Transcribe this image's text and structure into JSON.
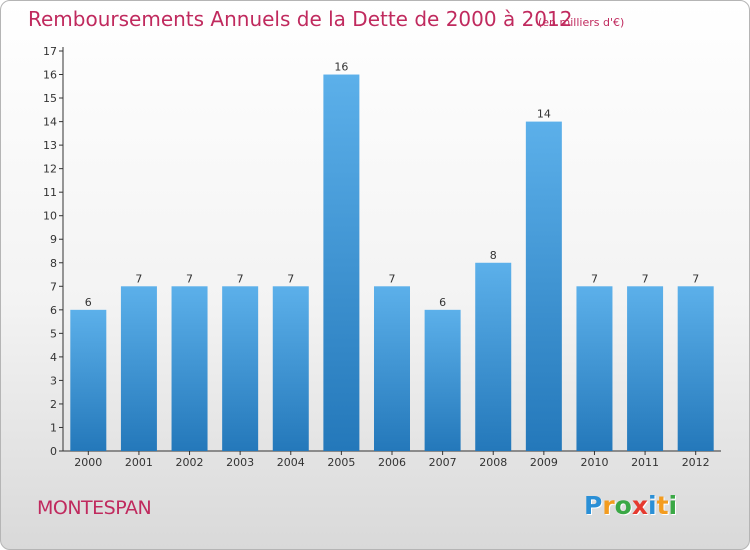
{
  "header": {
    "title": "Remboursements Annuels de la Dette de 2000 à 2012",
    "subtitle": "(en milliers d'€)"
  },
  "footer": {
    "town": "MONTESPAN",
    "logo": {
      "letters": [
        "P",
        "r",
        "o",
        "x",
        "i",
        "t",
        "i"
      ],
      "colors": [
        "#2a8fd6",
        "#f39c1f",
        "#3aa845",
        "#e53a2f",
        "#2a8fd6",
        "#f39c1f",
        "#3aa845"
      ]
    }
  },
  "colors": {
    "bar_top": "#5cb0ea",
    "bar_bottom": "#2478ba",
    "text": "#c02a5e",
    "axis": "#333333"
  },
  "chart_data": {
    "type": "bar",
    "title": "Remboursements Annuels de la Dette de 2000 à 2012",
    "subtitle": "(en milliers d'€)",
    "categories": [
      "2000",
      "2001",
      "2002",
      "2003",
      "2004",
      "2005",
      "2006",
      "2007",
      "2008",
      "2009",
      "2010",
      "2011",
      "2012"
    ],
    "values": [
      6,
      7,
      7,
      7,
      7,
      16,
      7,
      6,
      8,
      14,
      7,
      7,
      7
    ],
    "data_labels": [
      "6",
      "7",
      "7",
      "7",
      "7",
      "16",
      "7",
      "6",
      "8",
      "14",
      "7",
      "7",
      "7"
    ],
    "yticks": [
      "0",
      "1",
      "2",
      "3",
      "4",
      "5",
      "6",
      "7",
      "8",
      "9",
      "10",
      "11",
      "12",
      "13",
      "14",
      "15",
      "16",
      "17"
    ],
    "ylim": [
      0,
      17
    ],
    "grid": false
  }
}
